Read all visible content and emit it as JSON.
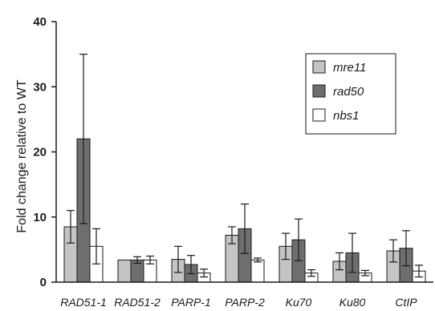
{
  "chart_data": {
    "type": "bar",
    "title": "",
    "xlabel": "",
    "ylabel": "Fold change relative to WT",
    "ylim": [
      0,
      40
    ],
    "yticks": [
      0,
      10,
      20,
      30,
      40
    ],
    "grid": false,
    "legend_position": "top-right",
    "categories": [
      "RAD51-1",
      "RAD51-2",
      "PARP-1",
      "PARP-2",
      "Ku70",
      "Ku80",
      "CtIP"
    ],
    "series": [
      {
        "name": "mre11",
        "color": "#c4c4c4",
        "values": [
          8.5,
          3.4,
          3.5,
          7.2,
          5.5,
          3.2,
          4.8
        ],
        "errors": [
          2.5,
          0.0,
          2.0,
          1.3,
          2.0,
          1.3,
          1.7
        ]
      },
      {
        "name": "rad50",
        "color": "#6e6e6e",
        "values": [
          22.0,
          3.4,
          2.7,
          8.2,
          6.5,
          4.5,
          5.2
        ],
        "errors": [
          13.0,
          0.5,
          1.4,
          3.8,
          3.2,
          3.0,
          2.7
        ]
      },
      {
        "name": "nbs1",
        "color": "#ffffff",
        "values": [
          5.5,
          3.4,
          1.4,
          3.4,
          1.4,
          1.4,
          1.7
        ],
        "errors": [
          2.7,
          0.6,
          0.6,
          0.3,
          0.5,
          0.4,
          0.9
        ]
      }
    ]
  }
}
